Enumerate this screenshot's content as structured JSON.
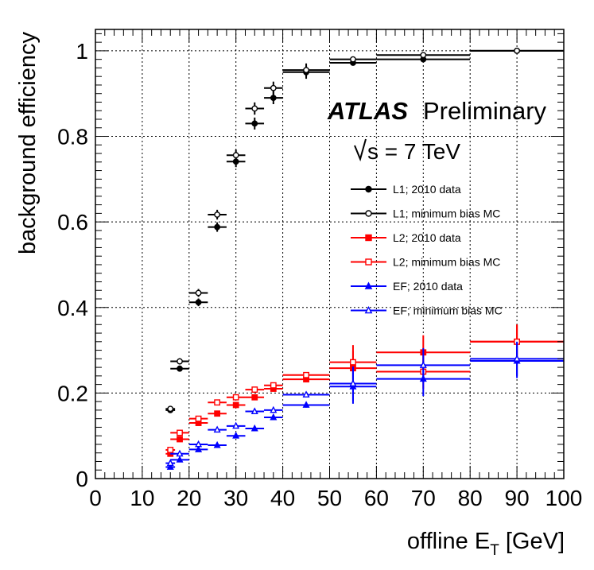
{
  "chart_data": {
    "type": "scatter",
    "xlabel_main": "offline E",
    "xlabel_sub": "T",
    "xlabel_unit": " [GeV]",
    "ylabel": "background efficiency",
    "xlim": [
      0,
      100
    ],
    "ylim": [
      0,
      1.05
    ],
    "x_ticks": [
      0,
      10,
      20,
      30,
      40,
      50,
      60,
      70,
      80,
      90,
      100
    ],
    "x_tick_labels": [
      "0",
      "10",
      "20",
      "30",
      "40",
      "50",
      "60",
      "70",
      "80",
      "90",
      "100"
    ],
    "y_ticks": [
      0,
      0.2,
      0.4,
      0.6,
      0.8,
      1
    ],
    "y_tick_labels": [
      "0",
      "0.2",
      "0.4",
      "0.6",
      "0.8",
      "1"
    ],
    "grid": true,
    "annotation_atlas": "ATLAS",
    "annotation_prelim": "Preliminary",
    "annotation_energy": "s = 7 TeV",
    "legend_position": "right",
    "series": [
      {
        "name": "L1; 2010 data",
        "color": "#000000",
        "marker": "circle-filled",
        "points": [
          [
            16,
            1,
            0.16
          ],
          [
            18,
            2,
            0.257
          ],
          [
            22,
            2,
            0.412
          ],
          [
            26,
            2,
            0.588
          ],
          [
            30,
            2,
            0.741
          ],
          [
            34,
            2,
            0.83
          ],
          [
            38,
            2,
            0.89
          ],
          [
            45,
            5,
            0.95
          ],
          [
            55,
            5,
            0.972
          ],
          [
            70,
            10,
            0.98
          ],
          [
            90,
            10,
            1.0
          ]
        ]
      },
      {
        "name": "L1; minimum bias MC",
        "color": "#000000",
        "marker": "circle-open",
        "points": [
          [
            16,
            1,
            0.163
          ],
          [
            18,
            2,
            0.274
          ],
          [
            22,
            2,
            0.434
          ],
          [
            26,
            2,
            0.617
          ],
          [
            30,
            2,
            0.756
          ],
          [
            34,
            2,
            0.865
          ],
          [
            38,
            2,
            0.913
          ],
          [
            45,
            5,
            0.955
          ],
          [
            55,
            5,
            0.98
          ],
          [
            70,
            10,
            0.99
          ],
          [
            90,
            10,
            1.0
          ]
        ]
      },
      {
        "name": "L2; 2010 data",
        "color": "#ff0000",
        "marker": "square-filled",
        "points": [
          [
            16,
            1,
            0.058
          ],
          [
            18,
            2,
            0.092
          ],
          [
            22,
            2,
            0.13
          ],
          [
            26,
            2,
            0.152
          ],
          [
            30,
            2,
            0.172
          ],
          [
            34,
            2,
            0.19
          ],
          [
            38,
            2,
            0.21
          ],
          [
            45,
            5,
            0.232
          ],
          [
            55,
            5,
            0.258
          ],
          [
            70,
            10,
            0.295
          ],
          [
            90,
            10,
            0.32
          ]
        ]
      },
      {
        "name": "L2; minimum bias MC",
        "color": "#ff0000",
        "marker": "square-open",
        "points": [
          [
            16,
            1,
            0.067
          ],
          [
            18,
            2,
            0.107
          ],
          [
            22,
            2,
            0.14
          ],
          [
            26,
            2,
            0.178
          ],
          [
            30,
            2,
            0.19
          ],
          [
            34,
            2,
            0.208
          ],
          [
            38,
            2,
            0.218
          ],
          [
            45,
            5,
            0.242
          ],
          [
            55,
            5,
            0.272
          ],
          [
            70,
            10,
            0.25
          ],
          [
            90,
            10,
            0.32
          ]
        ]
      },
      {
        "name": "EF; 2010 data",
        "color": "#0000ff",
        "marker": "triangle-filled",
        "points": [
          [
            16,
            1,
            0.027
          ],
          [
            18,
            2,
            0.044
          ],
          [
            22,
            2,
            0.068
          ],
          [
            26,
            2,
            0.078
          ],
          [
            30,
            2,
            0.1
          ],
          [
            34,
            2,
            0.117
          ],
          [
            38,
            2,
            0.143
          ],
          [
            45,
            5,
            0.172
          ],
          [
            55,
            5,
            0.215
          ],
          [
            70,
            10,
            0.233
          ],
          [
            90,
            10,
            0.275
          ]
        ]
      },
      {
        "name": "EF; minimum bias MC",
        "color": "#0000ff",
        "marker": "triangle-open",
        "points": [
          [
            16,
            1,
            0.036
          ],
          [
            18,
            2,
            0.058
          ],
          [
            22,
            2,
            0.08
          ],
          [
            26,
            2,
            0.114
          ],
          [
            30,
            2,
            0.123
          ],
          [
            34,
            2,
            0.157
          ],
          [
            38,
            2,
            0.16
          ],
          [
            45,
            5,
            0.196
          ],
          [
            55,
            5,
            0.222
          ],
          [
            70,
            10,
            0.265
          ],
          [
            90,
            10,
            0.28
          ]
        ]
      }
    ]
  }
}
